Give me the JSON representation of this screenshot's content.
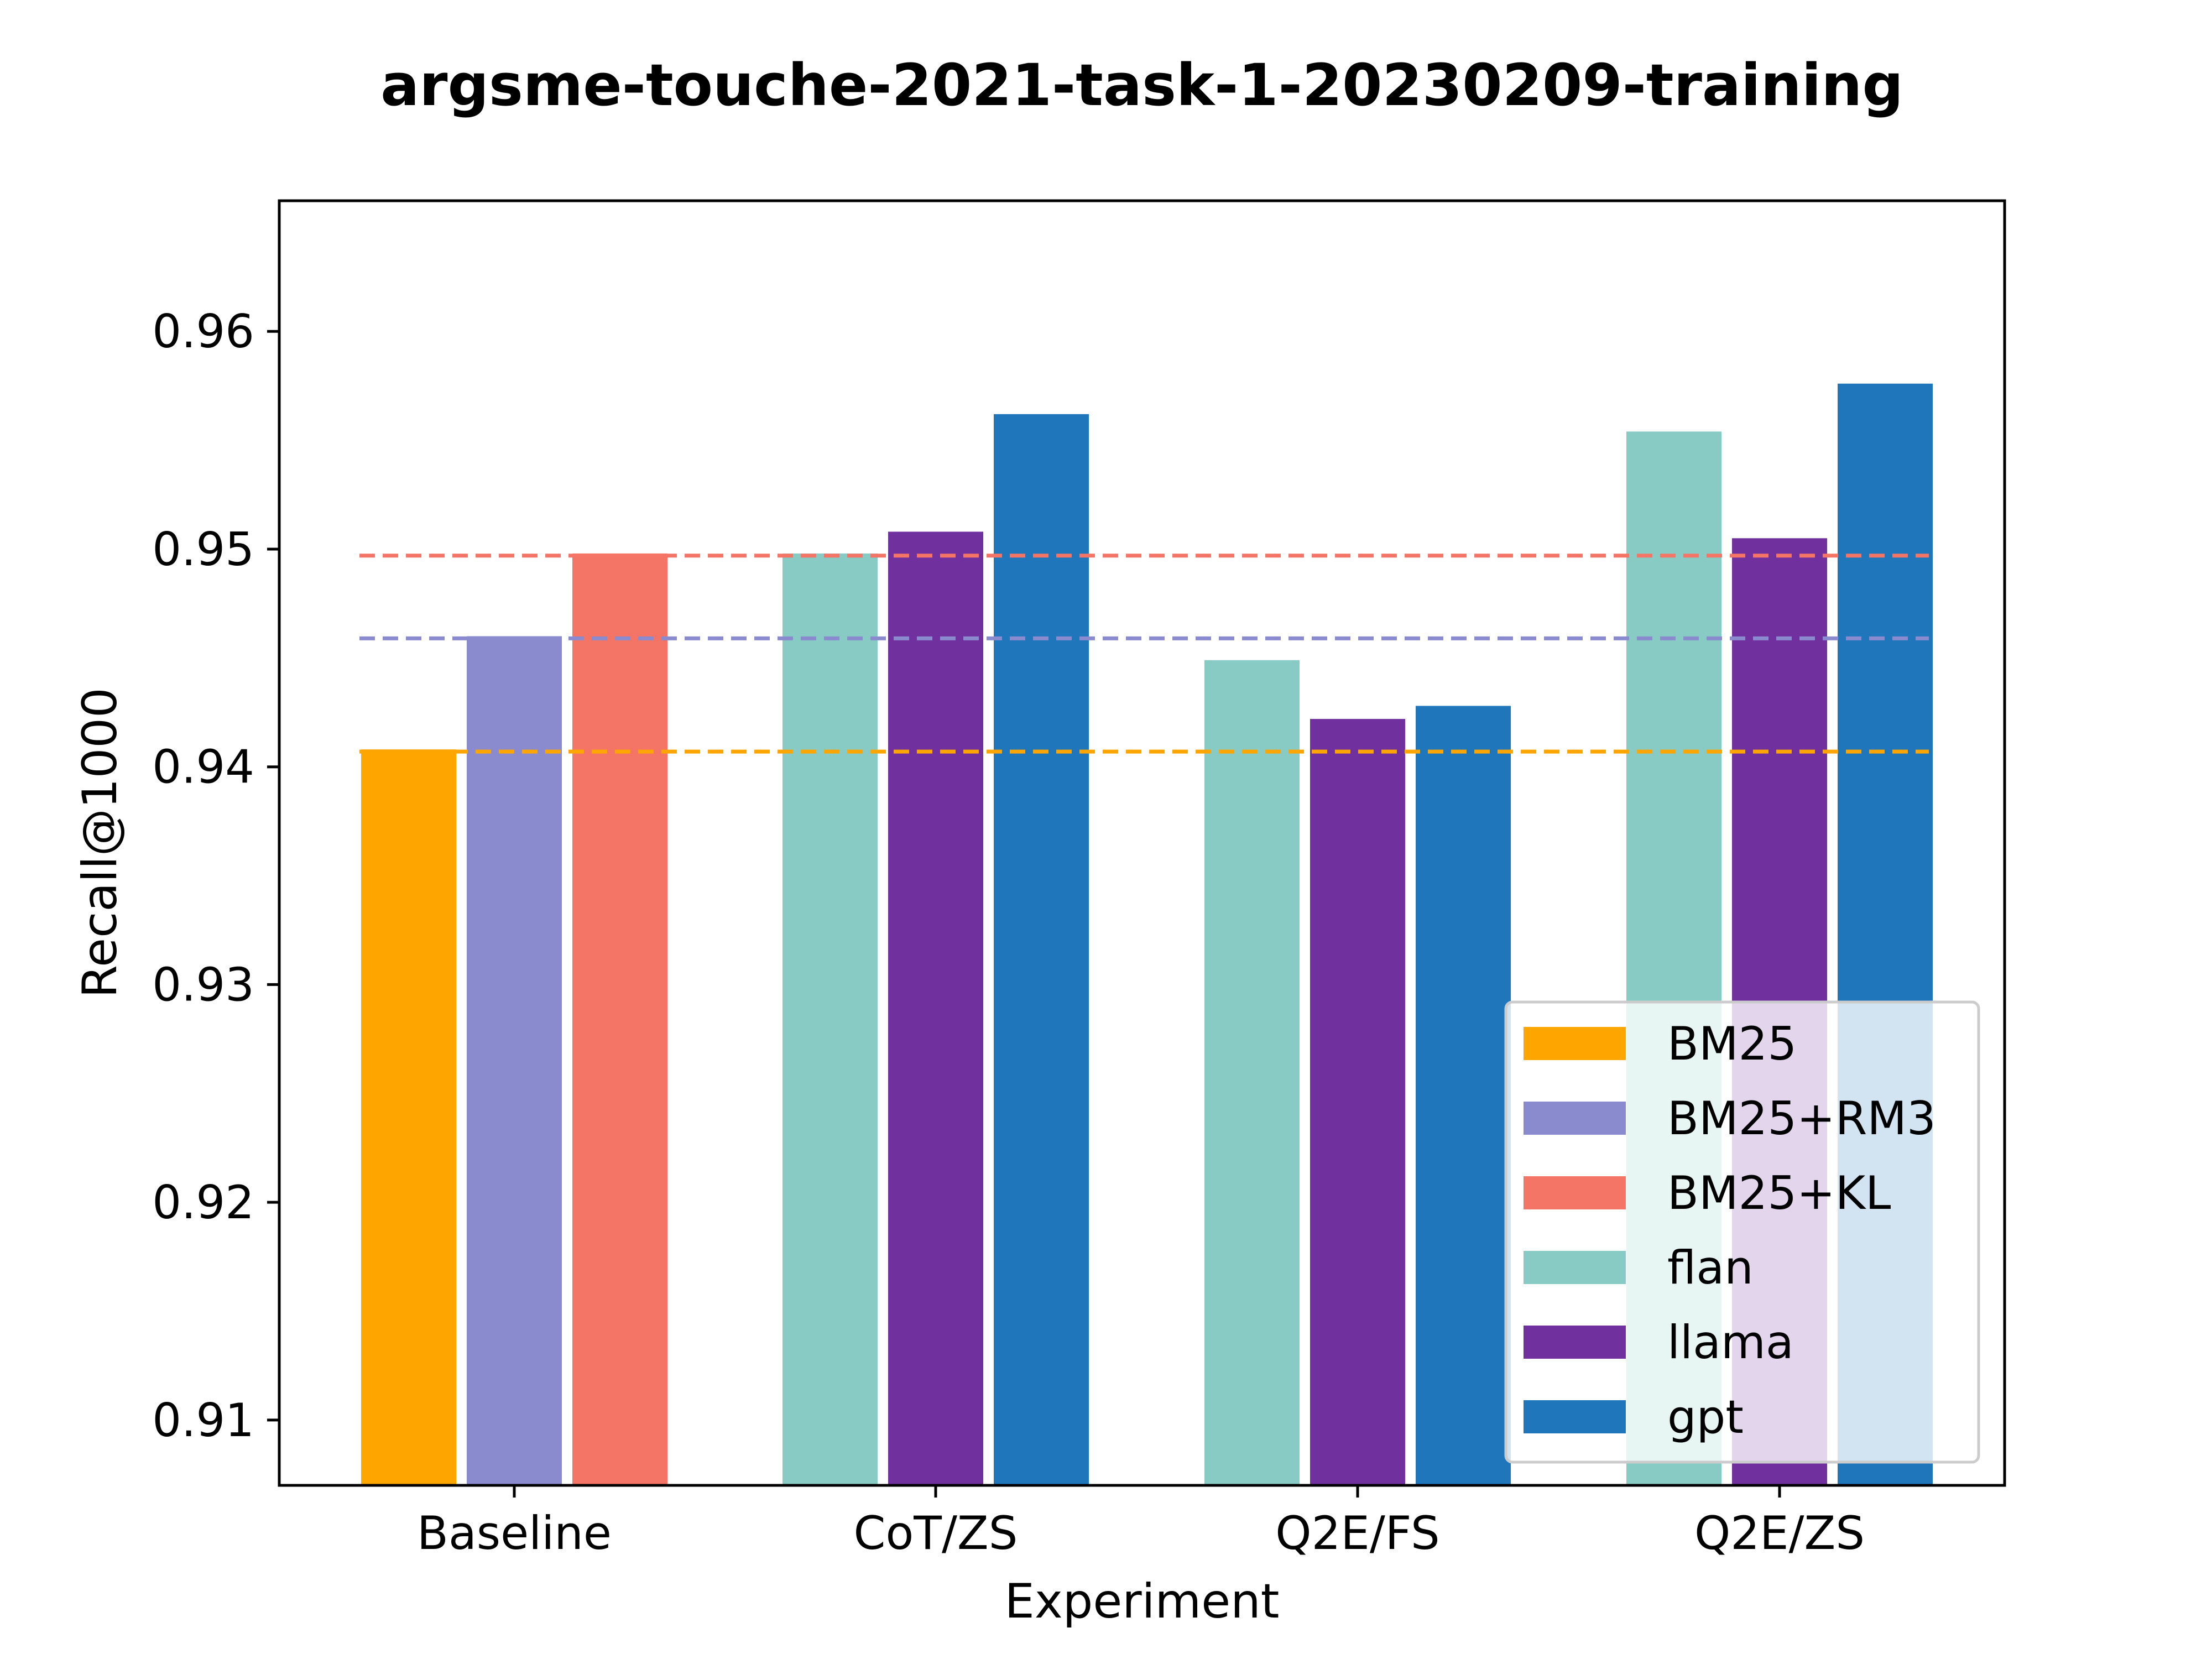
{
  "chart_data": {
    "type": "bar",
    "title": "argsme-touche-2021-task-1-20230209-training",
    "xlabel": "Experiment",
    "ylabel": "Recall@1000",
    "ylim": [
      0.907,
      0.966
    ],
    "yticks": [
      0.91,
      0.92,
      0.93,
      0.94,
      0.95,
      0.96
    ],
    "ytick_labels": [
      "0.91",
      "0.92",
      "0.93",
      "0.94",
      "0.95",
      "0.96"
    ],
    "categories": [
      "Baseline",
      "CoT/ZS",
      "Q2E/FS",
      "Q2E/ZS"
    ],
    "series": [
      {
        "name": "BM25",
        "color": "#FFA500",
        "values": [
          0.9408,
          null,
          null,
          null
        ]
      },
      {
        "name": "BM25+RM3",
        "color": "#8A8BCF",
        "values": [
          0.946,
          null,
          null,
          null
        ]
      },
      {
        "name": "BM25+KL",
        "color": "#F47466",
        "values": [
          0.9498,
          null,
          null,
          null
        ]
      },
      {
        "name": "flan",
        "color": "#87CBC4",
        "values": [
          null,
          0.9498,
          0.9449,
          0.9554
        ]
      },
      {
        "name": "llama",
        "color": "#70309E",
        "values": [
          null,
          0.9508,
          0.9422,
          0.9505
        ]
      },
      {
        "name": "gpt",
        "color": "#2076BB",
        "values": [
          null,
          0.9562,
          0.9428,
          0.9576
        ]
      }
    ],
    "reference_lines": [
      {
        "series": "BM25",
        "value": 0.9407,
        "style": "dashed"
      },
      {
        "series": "BM25+RM3",
        "value": 0.9459,
        "style": "dashed"
      },
      {
        "series": "BM25+KL",
        "value": 0.9497,
        "style": "dashed"
      }
    ],
    "legend_position": "lower-right",
    "grid": false
  }
}
